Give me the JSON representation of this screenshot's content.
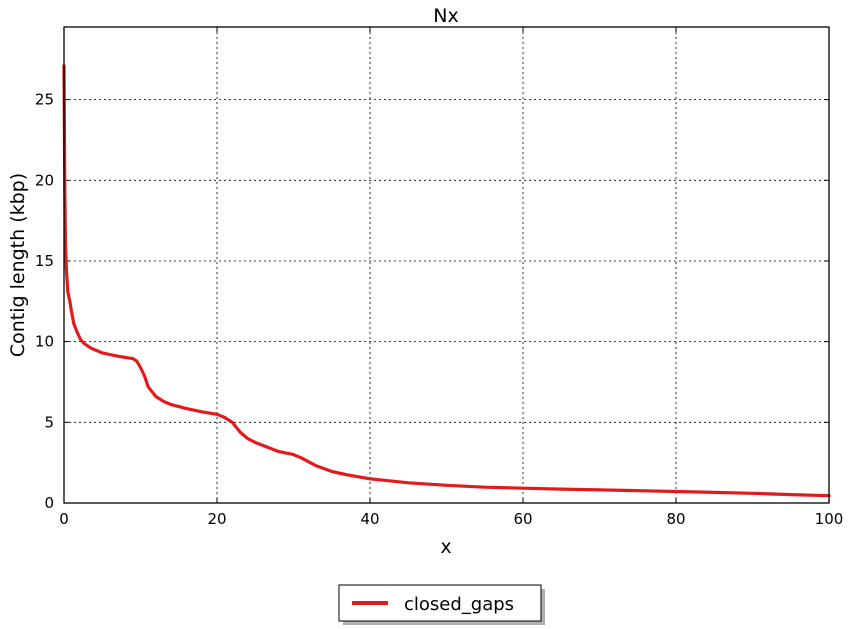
{
  "chart_data": {
    "type": "line",
    "title": "Nx",
    "xlabel": "x",
    "ylabel": "Contig length (kbp)",
    "xlim": [
      0,
      100
    ],
    "ylim": [
      0,
      29.5
    ],
    "xticks": [
      "0",
      "20",
      "40",
      "60",
      "80",
      "100"
    ],
    "yticks": [
      "0",
      "5",
      "10",
      "15",
      "20",
      "25"
    ],
    "grid": true,
    "legend": {
      "placement": "bottom-center"
    },
    "series": [
      {
        "name": "closed_gaps",
        "color": "#e31a1c",
        "x": [
          0,
          0.1,
          0.2,
          0.3,
          0.5,
          0.8,
          1.0,
          1.3,
          1.7,
          2.2,
          2.6,
          3.5,
          5,
          7,
          9,
          9.5,
          10,
          10.5,
          11,
          11.5,
          12,
          13,
          14,
          16,
          18,
          20,
          21,
          22,
          23,
          24,
          25,
          28,
          30,
          31,
          33,
          35,
          37,
          40,
          45,
          50,
          55,
          60,
          65,
          70,
          75,
          80,
          85,
          90,
          95,
          100
        ],
        "y": [
          27.1,
          19.5,
          16.0,
          14.6,
          13.1,
          12.4,
          11.8,
          11.1,
          10.6,
          10.1,
          9.9,
          9.6,
          9.3,
          9.1,
          8.95,
          8.8,
          8.4,
          7.9,
          7.2,
          6.9,
          6.6,
          6.3,
          6.1,
          5.85,
          5.65,
          5.5,
          5.3,
          5.0,
          4.4,
          4.0,
          3.75,
          3.2,
          3.0,
          2.8,
          2.3,
          1.95,
          1.75,
          1.5,
          1.25,
          1.1,
          0.98,
          0.92,
          0.86,
          0.81,
          0.76,
          0.71,
          0.66,
          0.6,
          0.52,
          0.45
        ]
      }
    ]
  }
}
